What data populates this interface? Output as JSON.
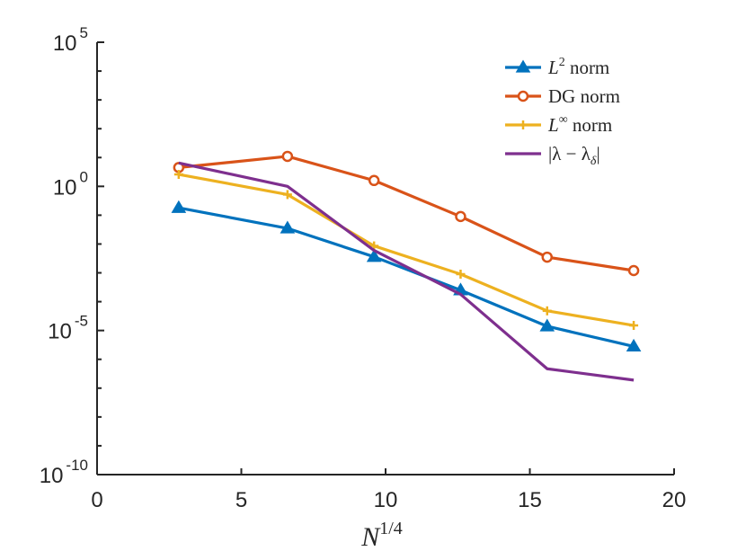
{
  "chart_data": {
    "type": "line",
    "yscale": "log",
    "title": "",
    "xlabel": "N",
    "xlabel_sup": "1/4",
    "ylabel": "",
    "xlim": [
      0,
      20
    ],
    "ylim": [
      1e-10,
      100000.0
    ],
    "x_ticks": [
      "0",
      "5",
      "10",
      "15",
      "20"
    ],
    "y_ticks": [
      {
        "base": "10",
        "exp": "5"
      },
      {
        "base": "10",
        "exp": "0"
      },
      {
        "base": "10",
        "exp": "-5"
      },
      {
        "base": "10",
        "exp": "-10"
      }
    ],
    "x": [
      2.83,
      6.6,
      9.6,
      12.6,
      15.6,
      18.6
    ],
    "series": [
      {
        "name": "L² norm",
        "legend_main": "L",
        "legend_sup": "2",
        "legend_rest": " norm",
        "color": "#0072BD",
        "marker": "triangle",
        "values": [
          0.18,
          0.035,
          0.0036,
          0.00025,
          1.4e-05,
          2.8e-06
        ]
      },
      {
        "name": "DG norm",
        "legend_main": "DG norm",
        "legend_sup": "",
        "legend_rest": "",
        "color": "#D95319",
        "marker": "circle",
        "values": [
          4.5,
          11,
          1.6,
          0.09,
          0.0035,
          0.0012
        ]
      },
      {
        "name": "L∞ norm",
        "legend_main": "L",
        "legend_sup": "∞",
        "legend_rest": " norm",
        "color": "#EDB120",
        "marker": "plus",
        "values": [
          2.6,
          0.52,
          0.0086,
          0.0009,
          4.8e-05,
          1.5e-05
        ]
      },
      {
        "name": "|λ − λδ|",
        "legend_main": "|λ − λ",
        "legend_sup": "",
        "legend_sub": "δ",
        "legend_rest": "|",
        "color": "#7E2F8E",
        "marker": "none",
        "values": [
          6.5,
          1.0,
          0.006,
          0.00018,
          4.7e-07,
          1.9e-07
        ]
      }
    ],
    "legend_position": "top-right",
    "grid": false
  }
}
